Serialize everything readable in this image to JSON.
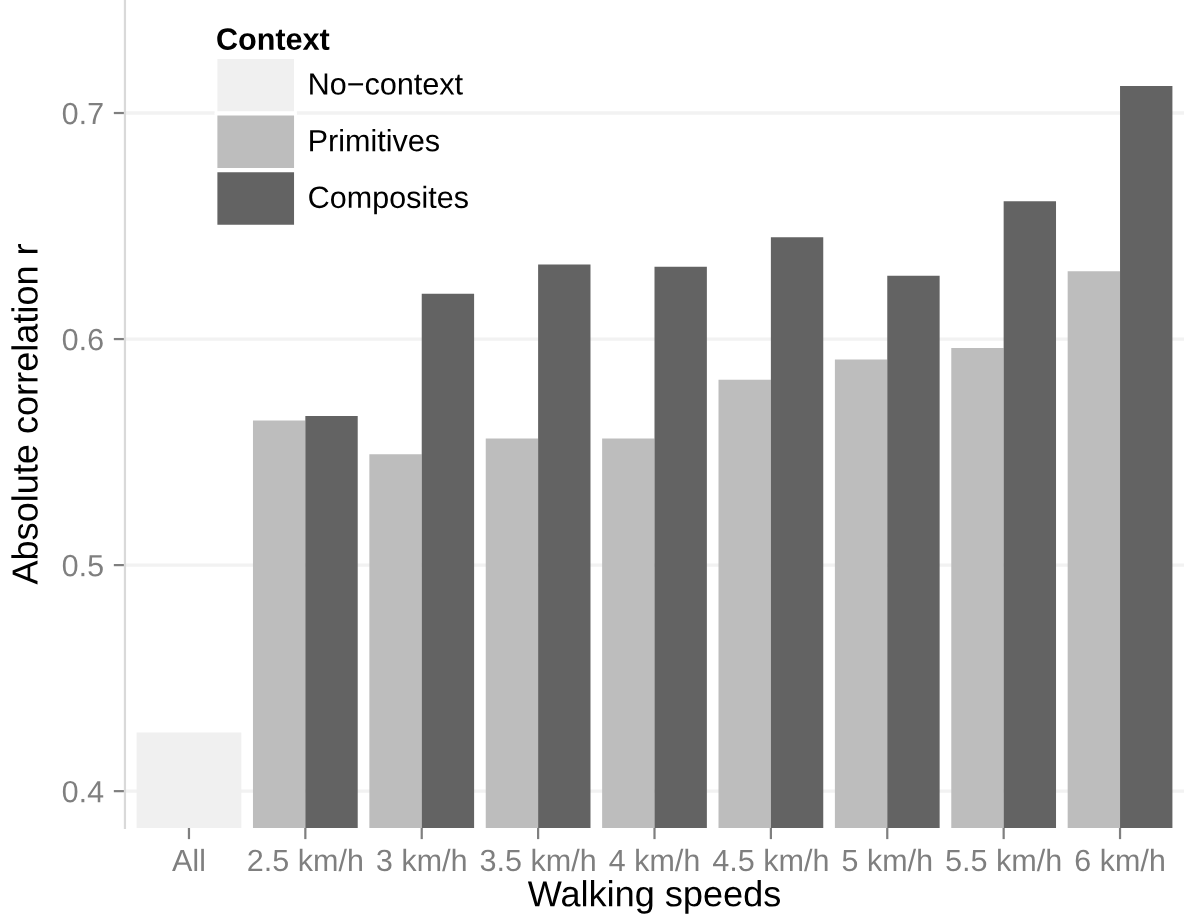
{
  "chart_data": {
    "type": "bar",
    "xlabel": "Walking speeds",
    "ylabel": "Absolute correlation r",
    "legend_title": "Context",
    "categories": [
      "All",
      "2.5 km/h",
      "3 km/h",
      "3.5 km/h",
      "4 km/h",
      "4.5 km/h",
      "5 km/h",
      "5.5 km/h",
      "6 km/h"
    ],
    "series": [
      {
        "name": "No−context",
        "color": "#f0f0f0",
        "values": [
          0.426,
          null,
          null,
          null,
          null,
          null,
          null,
          null,
          null
        ]
      },
      {
        "name": "Primitives",
        "color": "#bdbdbd",
        "values": [
          null,
          0.564,
          0.549,
          0.556,
          0.556,
          0.582,
          0.591,
          0.596,
          0.63
        ]
      },
      {
        "name": "Composites",
        "color": "#636363",
        "values": [
          null,
          0.566,
          0.62,
          0.633,
          0.632,
          0.645,
          0.628,
          0.661,
          0.712
        ]
      }
    ],
    "ylim": [
      0.3837,
      0.75
    ],
    "yticks": [
      0.4,
      0.5,
      0.6,
      0.7
    ],
    "grid": "y",
    "legend": "top left"
  }
}
